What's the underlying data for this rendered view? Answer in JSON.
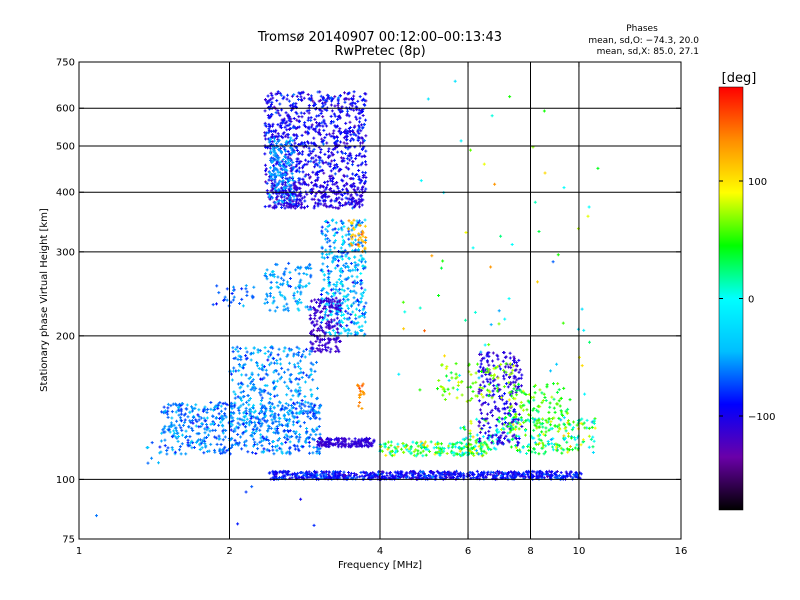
{
  "chart_data": {
    "type": "scatter",
    "title": "Tromsø 20140907 00:12:00–00:13:43",
    "subtitle": "RwPretec (8p)",
    "xlabel": "Frequency [MHz]",
    "ylabel": "Stationary phase Virtual Height [km]",
    "x_scale": "log",
    "y_scale": "log",
    "xlim": [
      1,
      16
    ],
    "ylim": [
      75,
      750
    ],
    "x_ticks": [
      {
        "value": 1,
        "label": "1"
      },
      {
        "value": 2,
        "label": "2"
      },
      {
        "value": 4,
        "label": "4"
      },
      {
        "value": 6,
        "label": "6"
      },
      {
        "value": 8,
        "label": "8"
      },
      {
        "value": 10,
        "label": "10"
      },
      {
        "value": 16,
        "label": "16"
      }
    ],
    "x_gridlines": [
      2,
      4,
      6,
      8,
      10
    ],
    "y_ticks": [
      {
        "value": 75,
        "label": "75"
      },
      {
        "value": 100,
        "label": "100"
      },
      {
        "value": 200,
        "label": "200"
      },
      {
        "value": 300,
        "label": "300"
      },
      {
        "value": 400,
        "label": "400"
      },
      {
        "value": 500,
        "label": "500"
      },
      {
        "value": 600,
        "label": "600"
      },
      {
        "value": 750,
        "label": "750"
      }
    ],
    "y_gridlines": [
      100,
      200,
      300,
      400,
      500,
      600
    ],
    "grid": true,
    "legend": {
      "title": "Phases",
      "lines": [
        "mean, sd,O: −74.3, 20.0",
        "mean, sd,X:  85.0, 27.1"
      ],
      "placement": "top-right"
    },
    "colorbar": {
      "label": "[deg]",
      "range": [
        -180,
        180
      ],
      "ticks": [
        {
          "value": 100,
          "label": "100"
        },
        {
          "value": 0,
          "label": "0"
        },
        {
          "value": -100,
          "label": "−100"
        }
      ],
      "colormap": [
        "#000000",
        "#6a00a8",
        "#0000ff",
        "#00bfff",
        "#00ffff",
        "#00ff00",
        "#ffff00",
        "#ff8c00",
        "#ff0000"
      ]
    },
    "clusters": [
      {
        "x_range": [
          2.35,
          3.75
        ],
        "y_range": [
          370,
          650
        ],
        "n": 950,
        "phase_mean": -95,
        "phase_sd": 25
      },
      {
        "x_range": [
          2.4,
          2.7
        ],
        "y_range": [
          380,
          520
        ],
        "n": 160,
        "phase_mean": -55,
        "phase_sd": 15
      },
      {
        "x_range": [
          2.4,
          3.7
        ],
        "y_range": [
          370,
          420
        ],
        "n": 140,
        "phase_mean": -110,
        "phase_sd": 10
      },
      {
        "x_range": [
          3.05,
          3.75
        ],
        "y_range": [
          200,
          350
        ],
        "n": 380,
        "phase_mean": -45,
        "phase_sd": 40
      },
      {
        "x_range": [
          2.9,
          3.35
        ],
        "y_range": [
          185,
          240
        ],
        "n": 170,
        "phase_mean": -115,
        "phase_sd": 10
      },
      {
        "x_range": [
          3.45,
          3.75
        ],
        "y_range": [
          300,
          350
        ],
        "n": 35,
        "phase_mean": 120,
        "phase_sd": 25
      },
      {
        "x_range": [
          3.6,
          3.72
        ],
        "y_range": [
          140,
          160
        ],
        "n": 18,
        "phase_mean": 140,
        "phase_sd": 15
      },
      {
        "x_range": [
          2.35,
          2.95
        ],
        "y_range": [
          225,
          285
        ],
        "n": 110,
        "phase_mean": -50,
        "phase_sd": 20
      },
      {
        "x_range": [
          1.85,
          2.25
        ],
        "y_range": [
          230,
          255
        ],
        "n": 30,
        "phase_mean": -70,
        "phase_sd": 20
      },
      {
        "x_range": [
          1.45,
          3.05
        ],
        "y_range": [
          113,
          145
        ],
        "n": 600,
        "phase_mean": -60,
        "phase_sd": 25
      },
      {
        "x_range": [
          2.0,
          3.0
        ],
        "y_range": [
          130,
          190
        ],
        "n": 320,
        "phase_mean": -55,
        "phase_sd": 25
      },
      {
        "x_range": [
          1.35,
          1.45
        ],
        "y_range": [
          108,
          120
        ],
        "n": 6,
        "phase_mean": -60,
        "phase_sd": 20
      },
      {
        "x_range": [
          3.0,
          3.9
        ],
        "y_range": [
          117,
          122
        ],
        "n": 160,
        "phase_mean": -110,
        "phase_sd": 10
      },
      {
        "x_range": [
          2.4,
          10.2
        ],
        "y_range": [
          100,
          104
        ],
        "n": 700,
        "phase_mean": -90,
        "phase_sd": 25
      },
      {
        "x_range": [
          4.0,
          6.6
        ],
        "y_range": [
          112,
          120
        ],
        "n": 180,
        "phase_mean": 40,
        "phase_sd": 60
      },
      {
        "x_range": [
          5.8,
          10.8
        ],
        "y_range": [
          113,
          135
        ],
        "n": 260,
        "phase_mean": 30,
        "phase_sd": 70
      },
      {
        "x_range": [
          6.3,
          7.7
        ],
        "y_range": [
          118,
          185
        ],
        "n": 230,
        "phase_mean": -105,
        "phase_sd": 15
      },
      {
        "x_range": [
          5.2,
          7.4
        ],
        "y_range": [
          145,
          175
        ],
        "n": 80,
        "phase_mean": 65,
        "phase_sd": 20
      },
      {
        "x_range": [
          7.2,
          9.6
        ],
        "y_range": [
          125,
          160
        ],
        "n": 120,
        "phase_mean": 55,
        "phase_sd": 35
      },
      {
        "x_range": [
          4.3,
          10.5
        ],
        "y_range": [
          150,
          260
        ],
        "n": 40,
        "phase_mean": 20,
        "phase_sd": 90
      },
      {
        "x_range": [
          4.5,
          11.0
        ],
        "y_range": [
          260,
          690
        ],
        "n": 30,
        "phase_mean": 30,
        "phase_sd": 90
      },
      {
        "x_range": [
          1.0,
          3.7
        ],
        "y_range": [
          80,
          98
        ],
        "n": 6,
        "phase_mean": -90,
        "phase_sd": 30
      }
    ]
  }
}
